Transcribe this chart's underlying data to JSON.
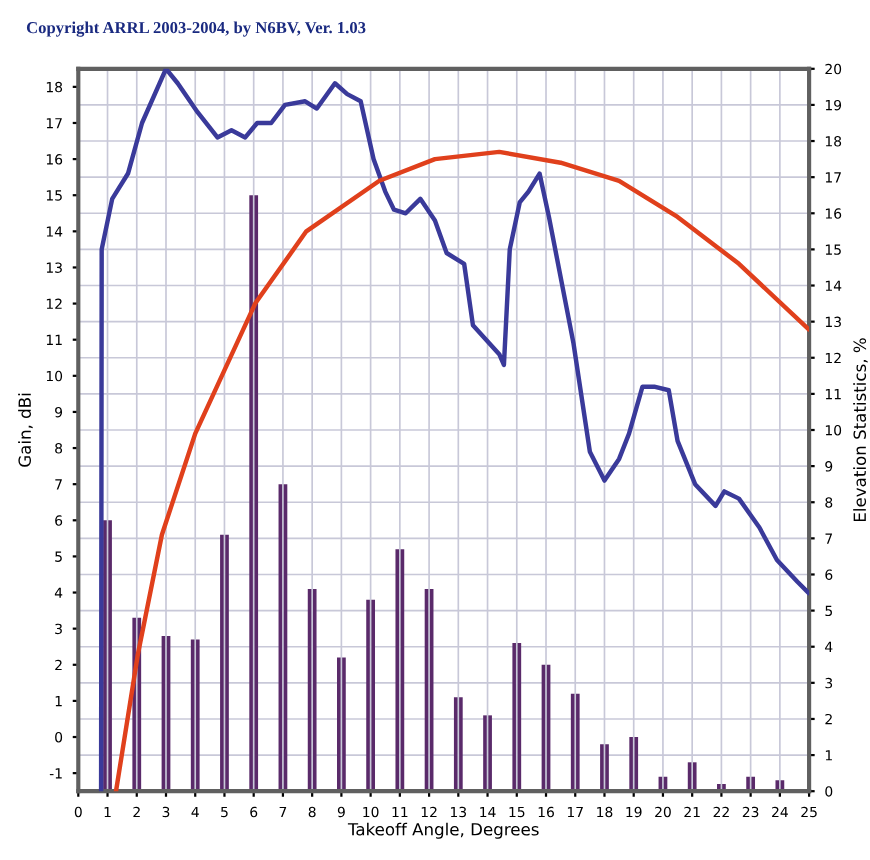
{
  "chart_data": {
    "type": "line",
    "title": "Copyright ARRL 2003-2004, by N6BV, Ver. 1.03",
    "xlabel": "Takeoff Angle, Degrees",
    "ylabel": "Gain, dBi",
    "y2label": "Elevation Statistics, %",
    "xlim": [
      0,
      25
    ],
    "xticks": [
      0,
      1,
      2,
      3,
      4,
      5,
      6,
      7,
      8,
      9,
      10,
      11,
      12,
      13,
      14,
      15,
      16,
      17,
      18,
      19,
      20,
      21,
      22,
      23,
      24,
      25
    ],
    "ylim": [
      -1.5,
      18.5
    ],
    "yticks": [
      -1,
      0,
      1,
      2,
      3,
      4,
      5,
      6,
      7,
      8,
      9,
      10,
      11,
      12,
      13,
      14,
      15,
      16,
      17,
      18
    ],
    "y2lim": [
      0,
      20
    ],
    "y2ticks": [
      0,
      1,
      2,
      3,
      4,
      5,
      6,
      7,
      8,
      9,
      10,
      11,
      12,
      13,
      14,
      15,
      16,
      17,
      18,
      19,
      20
    ],
    "grid": true,
    "series": [
      {
        "type": "bar",
        "axis": "y2",
        "color": "#5a2a6a",
        "x": [
          1,
          2,
          3,
          4,
          5,
          6,
          7,
          8,
          9,
          10,
          11,
          12,
          13,
          14,
          15,
          16,
          17,
          18,
          19,
          20,
          21,
          22,
          23,
          24
        ],
        "values": [
          7.5,
          4.8,
          4.3,
          4.2,
          7.1,
          16.5,
          8.5,
          5.6,
          3.7,
          5.3,
          6.7,
          5.6,
          2.6,
          2.1,
          4.1,
          3.5,
          2.7,
          1.3,
          1.5,
          0.4,
          0.8,
          0.2,
          0.4,
          0.3
        ]
      },
      {
        "color": "#3a3a9a",
        "x": [
          0.78,
          0.8,
          1.16,
          1.7,
          2.18,
          3.0,
          3.4,
          4.08,
          4.76,
          5.24,
          5.71,
          6.12,
          6.6,
          7.07,
          7.76,
          8.16,
          8.78,
          9.2,
          9.66,
          10.1,
          10.5,
          10.8,
          11.2,
          11.7,
          12.2,
          12.6,
          13.2,
          13.5,
          13.95,
          14.4,
          14.56,
          14.76,
          15.1,
          15.4,
          15.78,
          16.1,
          16.94,
          17.5,
          18.0,
          18.5,
          18.84,
          19.3,
          19.7,
          20.2,
          20.5,
          21.1,
          21.8,
          22.1,
          22.6,
          23.3,
          23.9,
          24.6,
          24.97
        ],
        "values": [
          -1.5,
          13.5,
          14.9,
          15.6,
          17.0,
          18.5,
          18.1,
          17.3,
          16.6,
          16.8,
          16.6,
          17.0,
          17.0,
          17.5,
          17.6,
          17.4,
          18.1,
          17.8,
          17.6,
          16.0,
          15.1,
          14.6,
          14.5,
          14.9,
          14.3,
          13.4,
          13.1,
          11.4,
          11.0,
          10.6,
          10.3,
          13.5,
          14.8,
          15.1,
          15.6,
          14.4,
          10.9,
          7.9,
          7.1,
          7.7,
          8.4,
          9.7,
          9.7,
          9.6,
          8.2,
          7.0,
          6.4,
          6.8,
          6.6,
          5.8,
          4.9,
          4.3,
          4.0
        ]
      },
      {
        "color": "#e0401c",
        "x": [
          1.29,
          2.04,
          2.86,
          4.0,
          6.05,
          7.8,
          10.3,
          12.2,
          14.4,
          16.5,
          18.5,
          20.5,
          22.6,
          24.97
        ],
        "values": [
          -1.5,
          2.3,
          5.6,
          8.4,
          12.0,
          14.0,
          15.4,
          16.0,
          16.2,
          15.9,
          15.4,
          14.4,
          13.1,
          11.3
        ]
      }
    ]
  }
}
